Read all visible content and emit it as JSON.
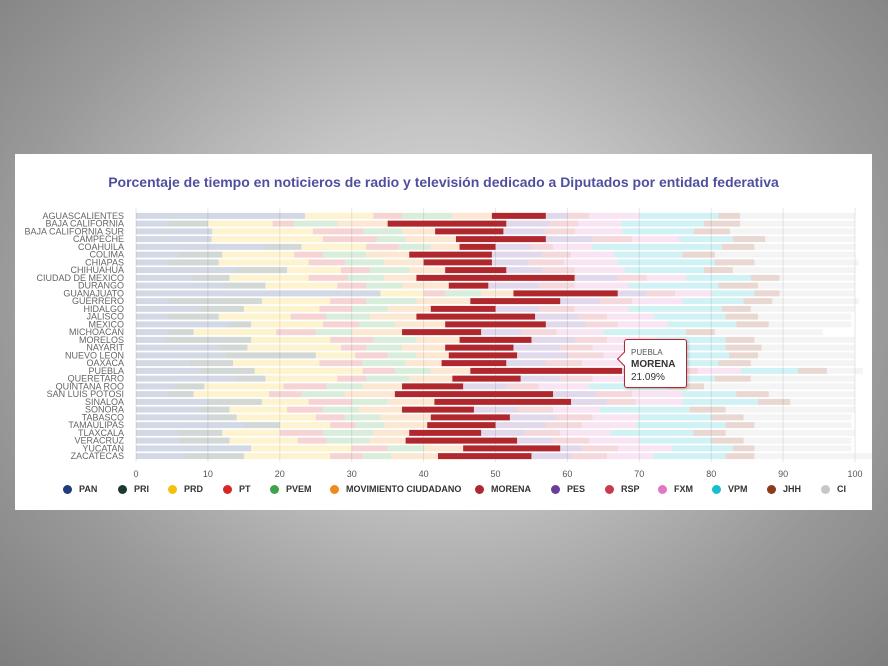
{
  "chart_data": {
    "type": "bar",
    "stacked": "horizontal-100-percent",
    "title": "Porcentaje de tiempo en noticieros de radio y televisión dedicado a Diputados por entidad federativa",
    "xlim": [
      0,
      100
    ],
    "x_ticks": [
      "0",
      "10",
      "20",
      "30",
      "40",
      "50",
      "60",
      "70",
      "80",
      "90",
      "100"
    ],
    "grid": true,
    "legend_position": "bottom",
    "categories": [
      "AGUASCALIENTES",
      "BAJA CALIFORNIA",
      "BAJA CALIFORNIA SUR",
      "CAMPECHE",
      "COAHUILA",
      "COLIMA",
      "CHIAPAS",
      "CHIHUAHUA",
      "CIUDAD DE MEXICO",
      "DURANGO",
      "GUANAJUATO",
      "GUERRERO",
      "HIDALGO",
      "JALISCO",
      "MEXICO",
      "MICHOACAN",
      "MORELOS",
      "NAYARIT",
      "NUEVO LEON",
      "OAXACA",
      "PUEBLA",
      "QUERETARO",
      "QUINTANA ROO",
      "SAN LUIS POTOSI",
      "SINALOA",
      "SONORA",
      "TABASCO",
      "TAMAULIPAS",
      "TLAXCALA",
      "VERACRUZ",
      "YUCATAN",
      "ZACATECAS"
    ],
    "series": [
      {
        "name": "PAN",
        "color": "#1f3d7a",
        "values": [
          23.5,
          4.5,
          10.6,
          10.5,
          18,
          6,
          4.5,
          14,
          8,
          12,
          34,
          4.5,
          9,
          4.5,
          13,
          4.5,
          4,
          11.5,
          12.5,
          7.5,
          9,
          14,
          5.5,
          4.5,
          10,
          9,
          10,
          15,
          6,
          6,
          16,
          7
        ]
      },
      {
        "name": "PRI",
        "color": "#1c3a2c",
        "values": [
          0,
          5.5,
          0,
          0,
          5,
          6,
          7,
          7,
          5,
          6,
          0,
          13,
          6,
          7,
          3,
          3.5,
          12,
          4,
          12.5,
          6,
          7.5,
          4,
          4,
          3.5,
          7.5,
          4,
          4,
          5,
          6,
          7,
          0,
          8
        ]
      },
      {
        "name": "PRD",
        "color": "#f4c20d",
        "values": [
          9.5,
          9,
          14,
          15.5,
          9,
          10,
          12.5,
          7.5,
          11,
          10,
          6,
          9.5,
          10.5,
          10,
          10,
          11.5,
          11,
          13,
          5.5,
          12,
          15,
          10,
          11,
          10.5,
          6.5,
          8,
          11,
          7,
          8,
          9.5,
          14,
          12
        ]
      },
      {
        "name": "PT",
        "color": "#d62728",
        "values": [
          4,
          3,
          7,
          7.5,
          4.5,
          4,
          5,
          4,
          5.5,
          4,
          3,
          5,
          4.5,
          5,
          5,
          5.5,
          6,
          3.5,
          4.5,
          6,
          4.5,
          4,
          6,
          4.5,
          6,
          5,
          4,
          3.5,
          6,
          4,
          5,
          4.5
        ]
      },
      {
        "name": "PVEM",
        "color": "#3fa34d",
        "values": [
          7,
          6,
          5.5,
          4,
          4.5,
          6,
          5.5,
          5.5,
          5,
          5,
          5,
          7,
          5,
          6,
          5,
          5,
          6,
          5,
          4,
          6,
          5,
          6,
          5,
          6,
          5,
          5,
          5,
          4,
          7,
          6,
          5,
          4
        ]
      },
      {
        "name": "MOVIMIENTO CIUDADANO",
        "color": "#f08a1c",
        "values": [
          5.5,
          7,
          4.5,
          7,
          4,
          6,
          5.5,
          5,
          4.5,
          6.5,
          4.5,
          7.5,
          6,
          6.5,
          7,
          7,
          6,
          6,
          4.5,
          5,
          5.5,
          6,
          5.5,
          7,
          6.5,
          6,
          7,
          6,
          5,
          5,
          5.5,
          6.5
        ]
      },
      {
        "name": "MORENA",
        "color": "#b0282e",
        "values": [
          7.5,
          16.5,
          9.5,
          12.5,
          5,
          11.5,
          9.5,
          8.5,
          22,
          5.5,
          14.5,
          12.5,
          9,
          16.5,
          14,
          11,
          10,
          9.5,
          9.5,
          9,
          21.09,
          9.5,
          8.5,
          22,
          19,
          10,
          11,
          9.5,
          10,
          15.5,
          13.5,
          13
        ]
      },
      {
        "name": "PES",
        "color": "#6a3d9a",
        "values": [
          3,
          6,
          5.5,
          6.5,
          5,
          7,
          5,
          5,
          6,
          7,
          4,
          5.5,
          6,
          6,
          5.5,
          5.5,
          6,
          6.5,
          7,
          5.5,
          6.5,
          5.5,
          6,
          6,
          5,
          6,
          6.5,
          7,
          6,
          5,
          3,
          5.5
        ]
      },
      {
        "name": "RSP",
        "color": "#c83a4c",
        "values": [
          3,
          4,
          4.5,
          5.5,
          3,
          4,
          5,
          4.5,
          4,
          5,
          4,
          4.5,
          5,
          4,
          4.5,
          5,
          4.5,
          4.5,
          5,
          5,
          4,
          4.5,
          4.5,
          5,
          4,
          5,
          5,
          5,
          5,
          5,
          5,
          5
        ]
      },
      {
        "name": "FXM",
        "color": "#e377c2",
        "values": [
          7,
          6,
          6.5,
          6.5,
          5.5,
          6,
          7.5,
          7,
          5.5,
          7.5,
          5,
          7,
          7.5,
          6.5,
          7,
          6.5,
          6.5,
          7.5,
          6.5,
          7,
          6,
          6.5,
          7,
          7,
          6.5,
          6.5,
          6.5,
          7.5,
          7,
          7,
          7.5,
          6.5
        ]
      },
      {
        "name": "VPM",
        "color": "#17becf",
        "values": [
          11,
          11.5,
          10,
          7.5,
          18,
          9.5,
          13.5,
          11,
          9,
          12.5,
          6,
          8.5,
          13,
          10,
          9.5,
          11.5,
          10,
          11,
          11,
          12,
          8,
          10.5,
          11,
          7.5,
          10.5,
          12.5,
          10,
          12.5,
          11.5,
          10,
          8.5,
          10
        ]
      },
      {
        "name": "JHH",
        "color": "#8c3b1a",
        "values": [
          3,
          5,
          5,
          4.5,
          4.5,
          4.5,
          5.5,
          4,
          4,
          5.5,
          3.5,
          4,
          4,
          4.5,
          4.5,
          4,
          4,
          5,
          4,
          4.5,
          4,
          5,
          5,
          4.5,
          4.5,
          5,
          4.5,
          4,
          4.5,
          4.5,
          3,
          4
        ]
      },
      {
        "name": "CI",
        "color": "#c7c7c7",
        "values": [
          16,
          16,
          17.4,
          12.5,
          14,
          19.5,
          14.5,
          17,
          10.5,
          13.5,
          10.5,
          12,
          14.5,
          13,
          11.5,
          15,
          14,
          13,
          13.5,
          14.5,
          5,
          14.5,
          21,
          12,
          9,
          18,
          15,
          13.5,
          18,
          15,
          13.5,
          18
        ]
      }
    ]
  },
  "tooltip": {
    "state": "PUEBLA",
    "party": "MORENA",
    "value": "21.09%"
  }
}
